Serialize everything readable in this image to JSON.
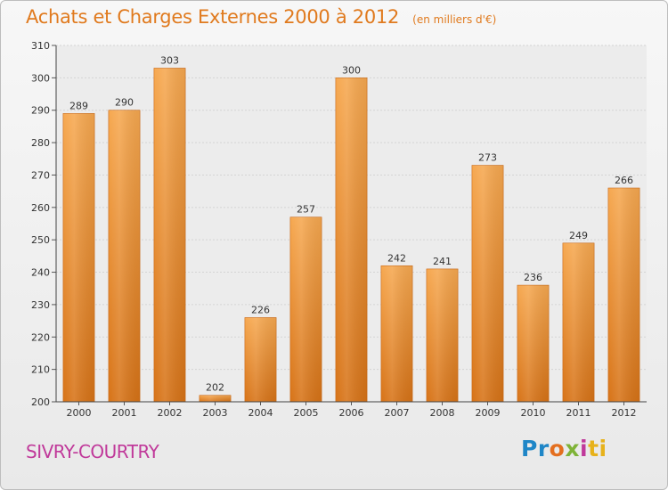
{
  "title": "Achats et Charges Externes 2000 à 2012",
  "subtitle": "(en milliers d'€)",
  "commune": "SIVRY-COURTRY",
  "logo": {
    "parts": [
      "Pr",
      "o",
      "x",
      "i",
      "ti"
    ]
  },
  "colors": {
    "bar_top": "#f6a850",
    "bar_bottom": "#d77317",
    "accent": "#e07a1e",
    "commune": "#c0399a"
  },
  "chart_data": {
    "type": "bar",
    "title": "Achats et Charges Externes 2000 à 2012",
    "subtitle": "(en milliers d'€)",
    "xlabel": "",
    "ylabel": "",
    "categories": [
      "2000",
      "2001",
      "2002",
      "2003",
      "2004",
      "2005",
      "2006",
      "2007",
      "2008",
      "2009",
      "2010",
      "2011",
      "2012"
    ],
    "values": [
      289,
      290,
      303,
      202,
      226,
      257,
      300,
      242,
      241,
      273,
      236,
      249,
      266
    ],
    "ylim": [
      200,
      310
    ],
    "yticks": [
      200,
      210,
      220,
      230,
      240,
      250,
      260,
      270,
      280,
      290,
      300,
      310
    ],
    "grid": true,
    "legend": "none"
  }
}
